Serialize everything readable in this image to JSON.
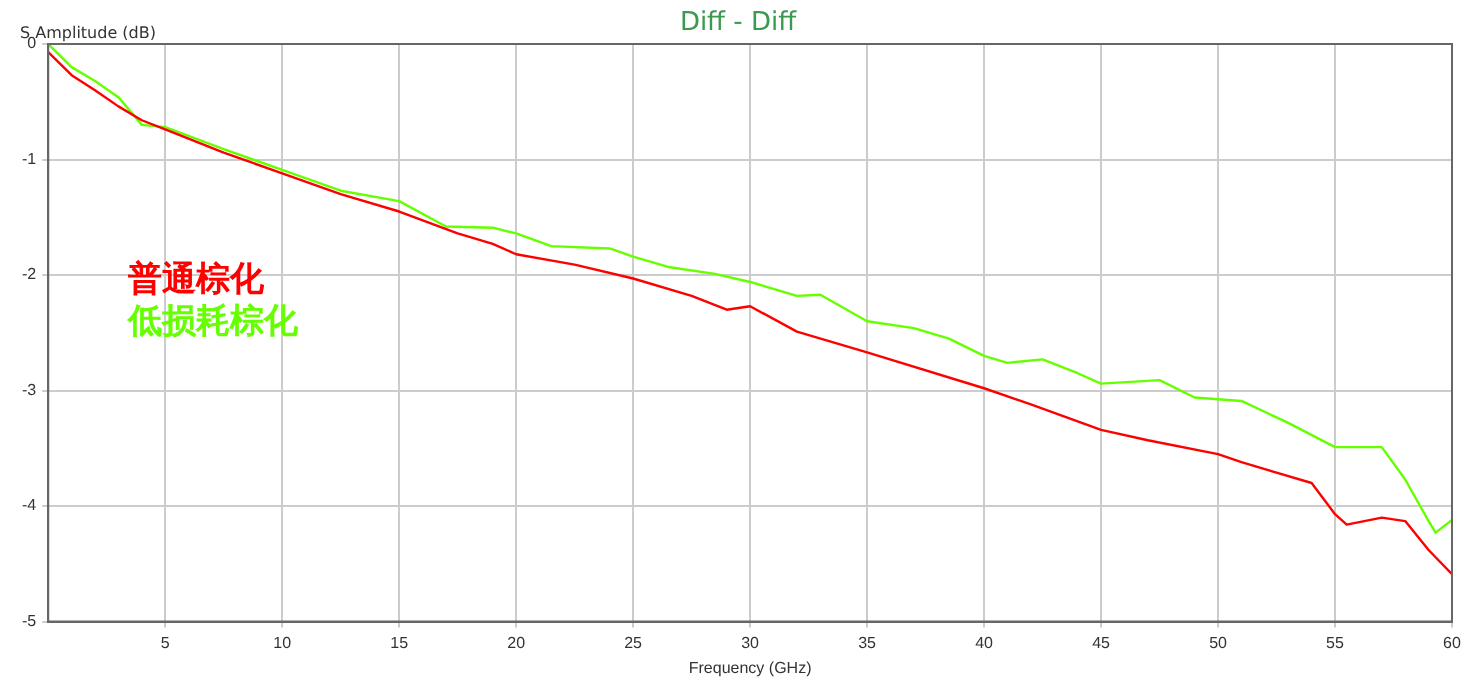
{
  "chart_data": {
    "type": "line",
    "title": "Diff - Diff",
    "xlabel": "Frequency (GHz)",
    "ylabel": "S Amplitude (dB)",
    "xlim": [
      0,
      60
    ],
    "xticks": [
      5,
      10,
      15,
      20,
      25,
      30,
      35,
      40,
      45,
      50,
      55,
      60
    ],
    "ylim": [
      -5,
      0
    ],
    "yticks": [
      0,
      -1,
      -2,
      -3,
      -4,
      -5
    ],
    "grid": true,
    "legend": "left",
    "marker": "none",
    "line_style": "solid",
    "series": [
      {
        "name": "普通棕化",
        "color": "#ff0000",
        "x": [
          0,
          1,
          2,
          3,
          4,
          5,
          7.5,
          10,
          12.5,
          15,
          17.5,
          19,
          20,
          22.5,
          25,
          27.5,
          29,
          30,
          32,
          35,
          40,
          42,
          45,
          47,
          50,
          51,
          52.5,
          54,
          55,
          55.5,
          57,
          58,
          59,
          60
        ],
        "values": [
          -0.07,
          -0.27,
          -0.4,
          -0.54,
          -0.66,
          -0.74,
          -0.94,
          -1.12,
          -1.3,
          -1.45,
          -1.64,
          -1.73,
          -1.82,
          -1.91,
          -2.03,
          -2.18,
          -2.3,
          -2.27,
          -2.49,
          -2.67,
          -2.98,
          -3.12,
          -3.34,
          -3.43,
          -3.55,
          -3.62,
          -3.71,
          -3.8,
          -4.07,
          -4.16,
          -4.1,
          -4.13,
          -4.38,
          -4.59
        ]
      },
      {
        "name": "低损耗棕化",
        "color": "#66ff00",
        "x": [
          0,
          1,
          2,
          3,
          4,
          5,
          7.5,
          10,
          12.5,
          15,
          17,
          19,
          20,
          21.5,
          24,
          25,
          26.5,
          28.5,
          30,
          32,
          33,
          35,
          37,
          38.5,
          40,
          41,
          42.5,
          44,
          45,
          47.5,
          49,
          51,
          53,
          55,
          57,
          58,
          59,
          59.3,
          60
        ],
        "values": [
          0,
          -0.2,
          -0.32,
          -0.46,
          -0.7,
          -0.72,
          -0.91,
          -1.09,
          -1.27,
          -1.36,
          -1.58,
          -1.59,
          -1.64,
          -1.75,
          -1.77,
          -1.84,
          -1.93,
          -1.99,
          -2.06,
          -2.18,
          -2.17,
          -2.4,
          -2.46,
          -2.55,
          -2.7,
          -2.76,
          -2.73,
          -2.85,
          -2.94,
          -2.91,
          -3.06,
          -3.09,
          -3.28,
          -3.49,
          -3.49,
          -3.77,
          -4.13,
          -4.23,
          -4.12
        ]
      }
    ]
  }
}
